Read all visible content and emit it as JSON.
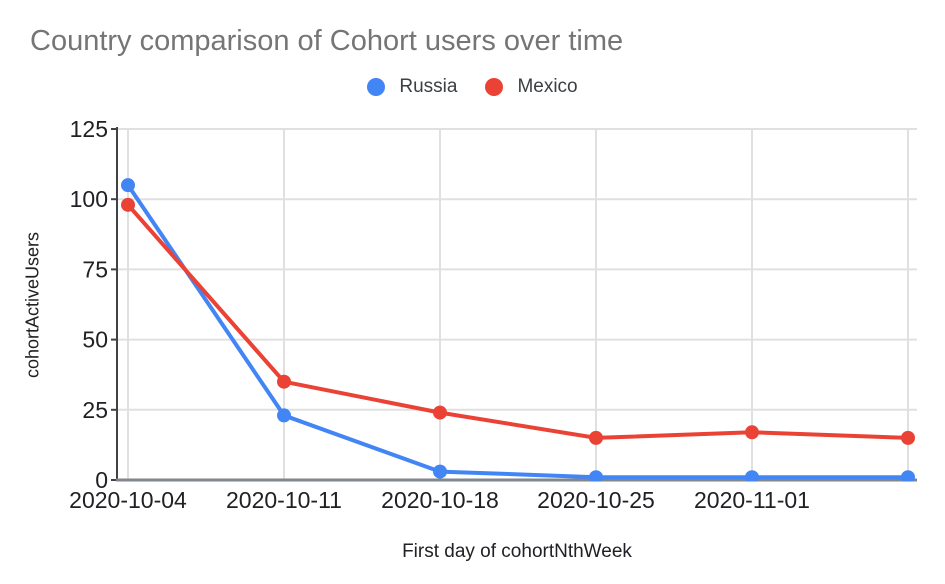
{
  "chart_data": {
    "type": "line",
    "title": "Country comparison of Cohort users over time",
    "xlabel": "First day of cohortNthWeek",
    "ylabel": "cohortActiveUsers",
    "categories": [
      "2020-10-04",
      "2020-10-11",
      "2020-10-18",
      "2020-10-25",
      "2020-11-01",
      ""
    ],
    "series": [
      {
        "name": "Russia",
        "color": "#4285F4",
        "values": [
          105,
          23,
          3,
          1,
          1,
          1
        ]
      },
      {
        "name": "Mexico",
        "color": "#EA4335",
        "values": [
          98,
          35,
          24,
          15,
          17,
          15
        ]
      }
    ],
    "y_ticks": [
      0,
      25,
      50,
      75,
      100,
      125
    ],
    "ylim": [
      0,
      125
    ],
    "grid": true,
    "legend_position": "top",
    "point_markers": true
  },
  "colors": {
    "background": "#ffffff",
    "title_text": "#757575",
    "tick_text": "#202124",
    "axis_title_text": "#202124",
    "legend_text": "#3c4043",
    "gridline": "#e0e0e0",
    "axis_line": "#424242",
    "baseline": "#80868b"
  }
}
